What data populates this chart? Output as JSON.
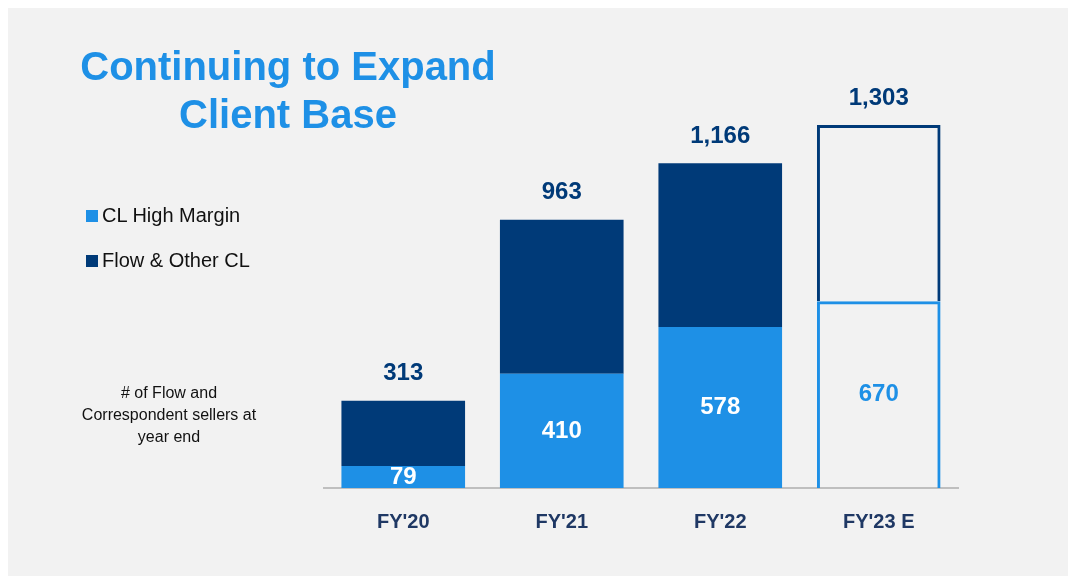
{
  "chart_data": {
    "type": "bar",
    "title": "Continuing to Expand Client Base",
    "stacked": true,
    "legend": "top left",
    "categories": [
      "FY'20",
      "FY'21",
      "FY'22",
      "FY'23 E"
    ],
    "series": [
      {
        "name": "CL High Margin",
        "color": "#1e90e6",
        "values": [
          79,
          410,
          578,
          null
        ],
        "value_labels": [
          "79",
          "410",
          "578",
          null
        ]
      },
      {
        "name": "Flow & Other CL",
        "color": "#003a78",
        "values": [
          234,
          553,
          588,
          null
        ]
      },
      {
        "color": "#1e90e6",
        "line_style": "dashed",
        "values": [
          null,
          null,
          null,
          670
        ],
        "value_labels": [
          null,
          null,
          null,
          "670"
        ]
      },
      {
        "color": "#003a78",
        "line_style": "dashed",
        "values": [
          null,
          null,
          null,
          633
        ]
      }
    ],
    "totals": [
      "313",
      "963",
      "1,166",
      "1,303"
    ],
    "annotations": [
      "# of Flow and Correspondent sellers at year end"
    ]
  }
}
